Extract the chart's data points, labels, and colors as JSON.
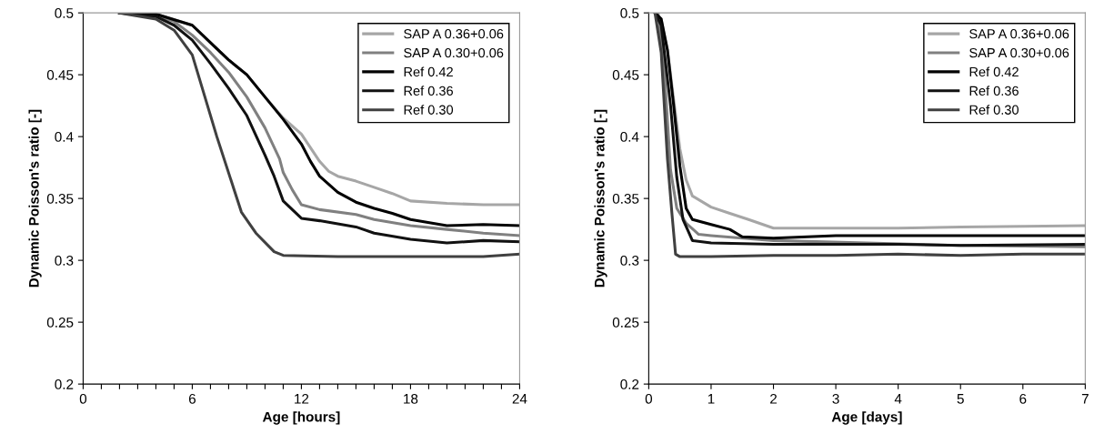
{
  "chart_data": [
    {
      "type": "line",
      "xlabel": "Age [hours]",
      "ylabel": "Dynamic Poisson's ratio [-]",
      "xlim": [
        0,
        24
      ],
      "ylim": [
        0.2,
        0.5
      ],
      "xticks": [
        0,
        {
          "value": 1,
          "label": null
        },
        {
          "value": 2,
          "label": null
        },
        {
          "value": 3,
          "label": null
        },
        {
          "value": 4,
          "label": null
        },
        {
          "value": 5,
          "label": null
        },
        6,
        {
          "value": 7,
          "label": null
        },
        {
          "value": 8,
          "label": null
        },
        {
          "value": 9,
          "label": null
        },
        {
          "value": 10,
          "label": null
        },
        {
          "value": 11,
          "label": null
        },
        12,
        {
          "value": 13,
          "label": null
        },
        {
          "value": 14,
          "label": null
        },
        {
          "value": 15,
          "label": null
        },
        {
          "value": 16,
          "label": null
        },
        {
          "value": 17,
          "label": null
        },
        18,
        {
          "value": 19,
          "label": null
        },
        {
          "value": 20,
          "label": null
        },
        {
          "value": 21,
          "label": null
        },
        {
          "value": 22,
          "label": null
        },
        {
          "value": 23,
          "label": null
        },
        24
      ],
      "yticks": [
        0.2,
        0.25,
        0.3,
        0.35,
        0.4,
        0.45,
        0.5
      ],
      "grid": false,
      "legend": "top right",
      "marker": "none",
      "line_style": "solid",
      "series": [
        {
          "name": "SAP A 0.36+0.06",
          "color": "#a6a6a6",
          "x": [
            2,
            4,
            6,
            7,
            8,
            9,
            10,
            11,
            12,
            13,
            13.5,
            14,
            15,
            16,
            17,
            18,
            20,
            22,
            24
          ],
          "values": [
            0.5,
            0.499,
            0.49,
            0.476,
            0.462,
            0.45,
            0.432,
            0.415,
            0.402,
            0.38,
            0.372,
            0.368,
            0.364,
            0.359,
            0.354,
            0.348,
            0.346,
            0.345,
            0.345
          ]
        },
        {
          "name": "SAP A 0.30+0.06",
          "color": "#808080",
          "x": [
            2,
            4,
            5,
            6,
            7,
            8,
            9,
            10,
            10.8,
            11,
            11.5,
            12,
            13,
            15,
            16,
            18,
            20,
            22,
            24
          ],
          "values": [
            0.5,
            0.498,
            0.493,
            0.482,
            0.468,
            0.452,
            0.432,
            0.407,
            0.382,
            0.371,
            0.357,
            0.345,
            0.341,
            0.337,
            0.333,
            0.328,
            0.325,
            0.322,
            0.32
          ]
        },
        {
          "name": "Ref 0.42",
          "color": "#000000",
          "x": [
            2,
            4,
            6,
            7,
            8,
            9,
            10,
            11,
            12,
            12.5,
            13,
            14,
            15,
            16,
            17,
            18,
            20,
            22,
            24
          ],
          "values": [
            0.5,
            0.499,
            0.49,
            0.476,
            0.462,
            0.45,
            0.432,
            0.414,
            0.394,
            0.38,
            0.368,
            0.355,
            0.347,
            0.342,
            0.338,
            0.333,
            0.328,
            0.329,
            0.328
          ]
        },
        {
          "name": "Ref 0.36",
          "color": "#111111",
          "x": [
            2,
            4,
            5,
            6,
            7,
            8,
            9,
            10,
            10.5,
            11,
            12,
            13,
            15,
            16,
            18,
            20,
            22,
            24
          ],
          "values": [
            0.5,
            0.497,
            0.49,
            0.478,
            0.459,
            0.439,
            0.417,
            0.385,
            0.368,
            0.348,
            0.334,
            0.332,
            0.327,
            0.322,
            0.317,
            0.314,
            0.316,
            0.315
          ]
        },
        {
          "name": "Ref 0.30",
          "color": "#404040",
          "x": [
            2,
            4,
            5,
            6,
            7.35,
            8.7,
            9.5,
            10.5,
            11,
            14,
            18,
            22,
            24
          ],
          "values": [
            0.5,
            0.495,
            0.486,
            0.466,
            0.4,
            0.339,
            0.322,
            0.307,
            0.304,
            0.303,
            0.303,
            0.303,
            0.305
          ]
        }
      ]
    },
    {
      "type": "line",
      "xlabel": "Age [days]",
      "ylabel": "Dynamic Poisson's ratio [-]",
      "xlim": [
        0,
        7
      ],
      "ylim": [
        0.2,
        0.5
      ],
      "xticks": [
        0,
        1,
        2,
        3,
        4,
        5,
        6,
        7
      ],
      "yticks": [
        0.2,
        0.25,
        0.3,
        0.35,
        0.4,
        0.45,
        0.5
      ],
      "grid": false,
      "legend": "top right",
      "marker": "none",
      "line_style": "solid",
      "series": [
        {
          "name": "SAP A 0.36+0.06",
          "color": "#a6a6a6",
          "x": [
            0.1,
            0.2,
            0.3,
            0.4,
            0.5,
            0.6,
            0.7,
            1.0,
            1.3,
            1.6,
            2,
            3,
            4,
            5,
            7
          ],
          "values": [
            0.5,
            0.495,
            0.47,
            0.43,
            0.39,
            0.365,
            0.352,
            0.343,
            0.338,
            0.333,
            0.326,
            0.326,
            0.326,
            0.327,
            0.328
          ]
        },
        {
          "name": "SAP A 0.30+0.06",
          "color": "#808080",
          "x": [
            0.1,
            0.15,
            0.25,
            0.35,
            0.45,
            0.6,
            0.8,
            1.0,
            1.5,
            2,
            5,
            7
          ],
          "values": [
            0.5,
            0.5,
            0.453,
            0.373,
            0.342,
            0.33,
            0.321,
            0.32,
            0.318,
            0.316,
            0.312,
            0.311
          ]
        },
        {
          "name": "Ref 0.42",
          "color": "#000000",
          "x": [
            0.1,
            0.2,
            0.3,
            0.4,
            0.5,
            0.6,
            0.7,
            1.0,
            1.3,
            1.5,
            2,
            3,
            4,
            5,
            7
          ],
          "values": [
            0.5,
            0.495,
            0.47,
            0.425,
            0.376,
            0.342,
            0.333,
            0.329,
            0.325,
            0.319,
            0.318,
            0.32,
            0.32,
            0.32,
            0.32
          ]
        },
        {
          "name": "Ref 0.36",
          "color": "#111111",
          "x": [
            0.1,
            0.2,
            0.35,
            0.45,
            0.55,
            0.7,
            1.0,
            2,
            3,
            4,
            5,
            7
          ],
          "values": [
            0.5,
            0.49,
            0.425,
            0.367,
            0.333,
            0.316,
            0.314,
            0.313,
            0.313,
            0.313,
            0.312,
            0.313
          ]
        },
        {
          "name": "Ref 0.30",
          "color": "#404040",
          "x": [
            0.1,
            0.2,
            0.3,
            0.37,
            0.43,
            0.5,
            1,
            2,
            3,
            4,
            5,
            6,
            7
          ],
          "values": [
            0.5,
            0.468,
            0.382,
            0.339,
            0.305,
            0.303,
            0.303,
            0.304,
            0.304,
            0.305,
            0.304,
            0.305,
            0.305
          ]
        }
      ]
    }
  ]
}
